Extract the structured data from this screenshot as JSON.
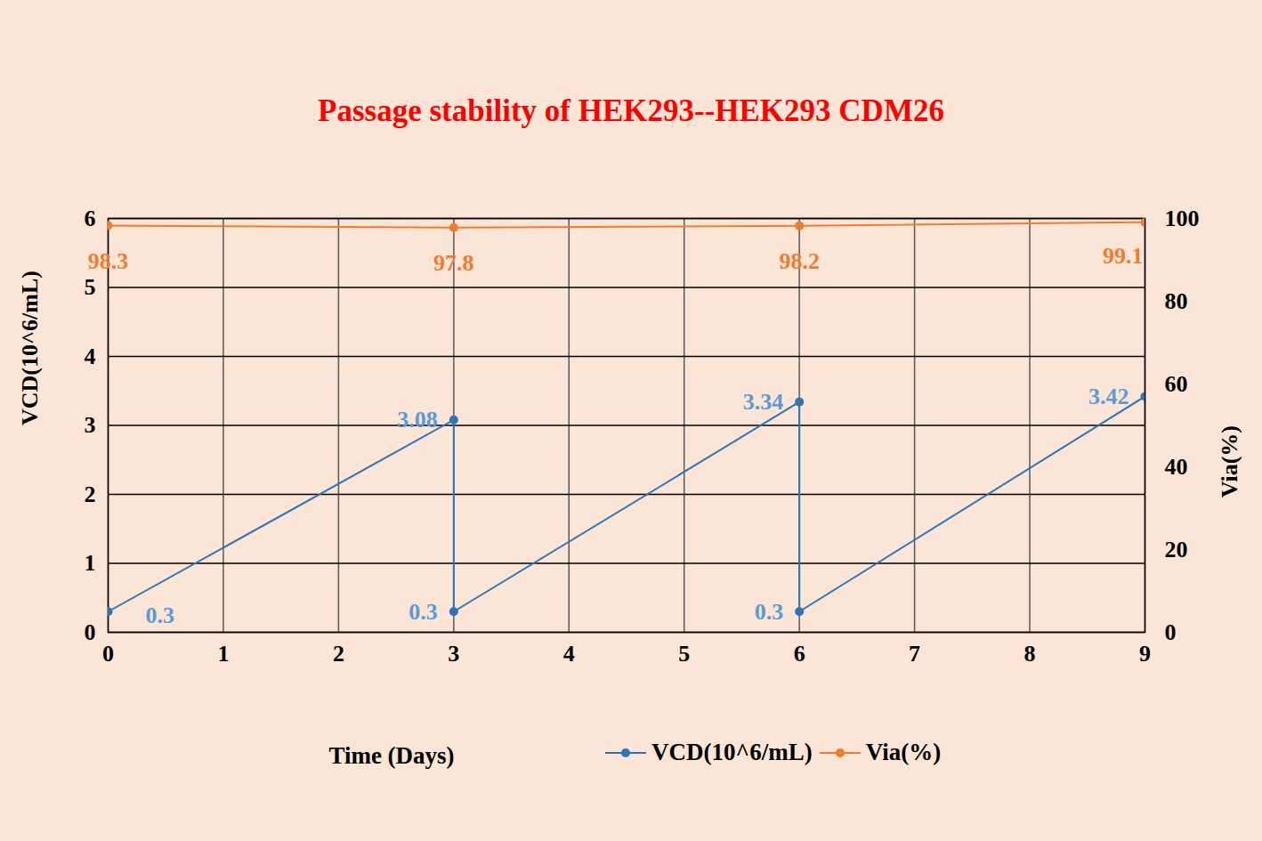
{
  "chart_data": {
    "type": "line",
    "title": "Passage stability of HEK293--HEK293 CDM26",
    "x_label": "Time (Days)",
    "y_label": "VCD(10^6/mL)",
    "y2_label": "Via(%)",
    "xlim": [
      0,
      9
    ],
    "xticks": [
      0,
      1,
      2,
      3,
      4,
      5,
      6,
      7,
      8,
      9
    ],
    "ylim": [
      0,
      6
    ],
    "yticks": [
      0,
      1,
      2,
      3,
      4,
      5,
      6
    ],
    "y2lim": [
      0,
      100
    ],
    "y2ticks": [
      0,
      20,
      40,
      60,
      80,
      100
    ],
    "grid": true,
    "data_labels": true,
    "legend": "bottom",
    "series": [
      {
        "name": "VCD(10^6/mL)",
        "color": "#2e75b6",
        "marker": "circle",
        "x": [
          0,
          3,
          3,
          6,
          6,
          9
        ],
        "values": [
          0.3,
          3.08,
          0.3,
          3.34,
          0.3,
          3.42
        ]
      },
      {
        "name": "Via(%)",
        "color": "#ed7d31",
        "marker": "circle",
        "axis": "y2",
        "x": [
          0,
          3,
          6,
          9
        ],
        "values": [
          98.3,
          97.8,
          98.2,
          99.1
        ]
      }
    ]
  }
}
